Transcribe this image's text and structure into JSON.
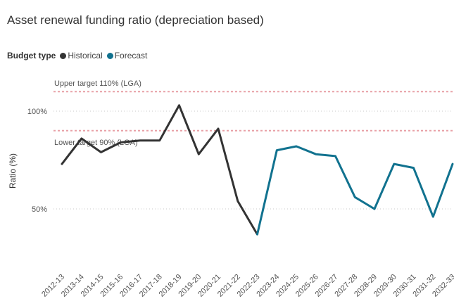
{
  "chart_data": {
    "type": "line",
    "title": "Asset renewal funding ratio (depreciation based)",
    "legend_title": "Budget type",
    "xlabel": "",
    "ylabel": "Ratio (%)",
    "y_tick_labels": [
      "100%",
      "50%"
    ],
    "y_tick_values": [
      100,
      50
    ],
    "ylim": [
      20,
      120
    ],
    "categories": [
      "2012-13",
      "2013-14",
      "2014-15",
      "2015-16",
      "2016-17",
      "2017-18",
      "2018-19",
      "2019-20",
      "2020-21",
      "2021-22",
      "2022-23",
      "2023-24",
      "2024-25",
      "2025-26",
      "2026-27",
      "2027-28",
      "2028-29",
      "2029-30",
      "2030-31",
      "2031-32",
      "2032-33"
    ],
    "series": [
      {
        "name": "Historical",
        "color": "#333333",
        "values": [
          73,
          86,
          79,
          84,
          85,
          85,
          103,
          78,
          91,
          54,
          37,
          null,
          null,
          null,
          null,
          null,
          null,
          null,
          null,
          null,
          null
        ]
      },
      {
        "name": "Forecast",
        "color": "#11728f",
        "values": [
          null,
          null,
          null,
          null,
          null,
          null,
          null,
          null,
          null,
          null,
          37,
          80,
          82,
          78,
          77,
          56,
          50,
          73,
          71,
          46,
          73
        ]
      }
    ],
    "reference_lines": [
      {
        "label": "Upper target 110% (LGA)",
        "value": 110,
        "color": "#e8a0a6"
      },
      {
        "label": "Lower target 90% (LGA)",
        "value": 90,
        "color": "#e8a0a6"
      }
    ]
  }
}
